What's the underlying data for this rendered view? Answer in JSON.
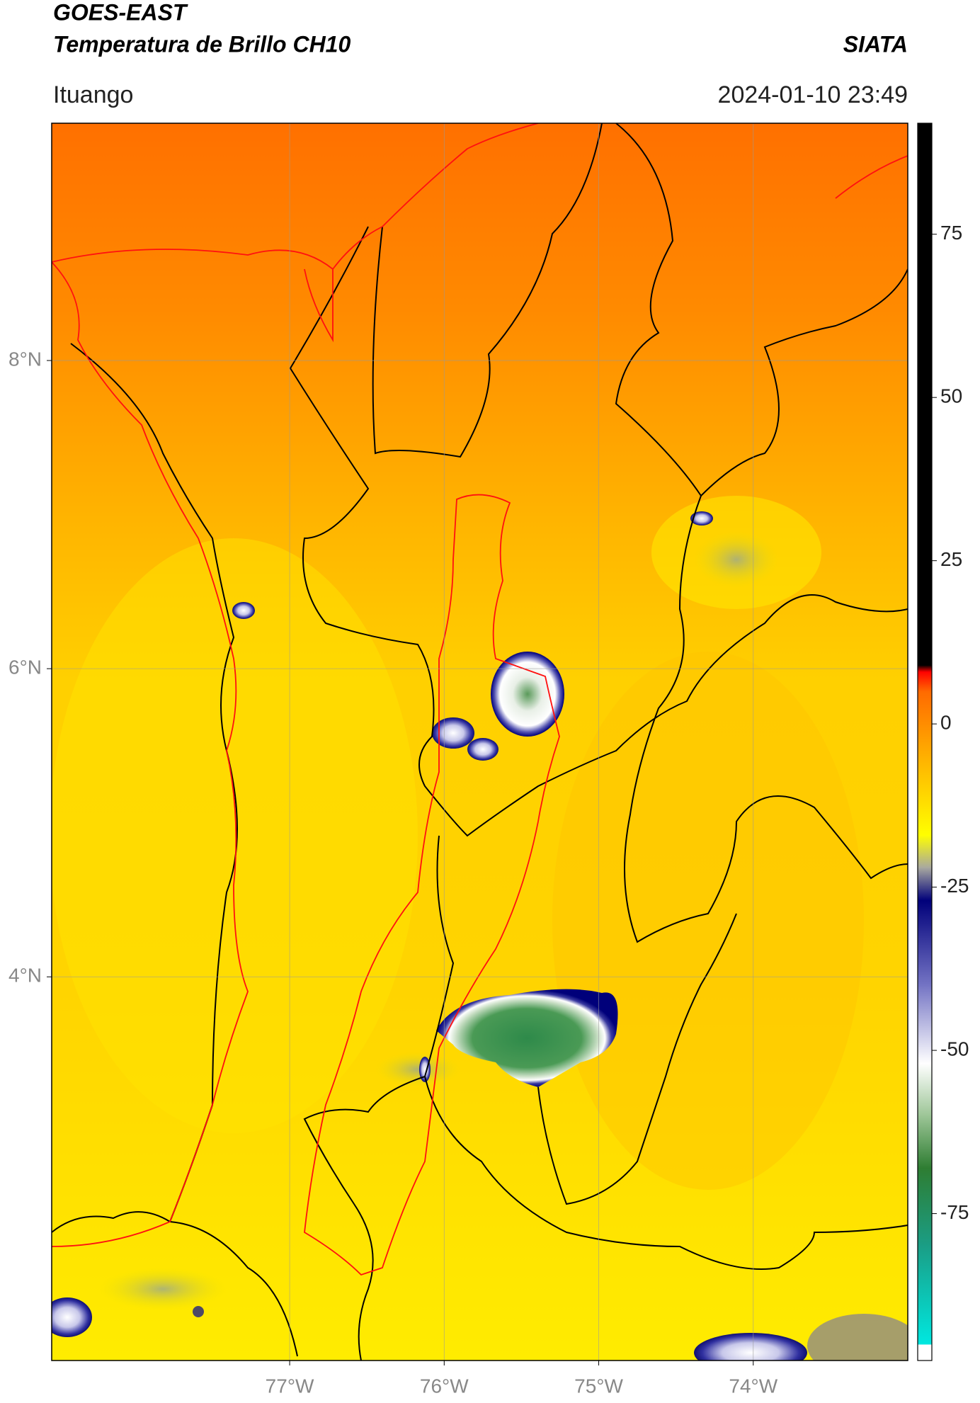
{
  "chart_data": {
    "type": "map",
    "title": "GOES-EAST",
    "subtitle": "Temperatura de Brillo CH10",
    "source": "SIATA",
    "location": "Ituango",
    "timestamp": "2024-01-10 23:49",
    "xlim": [
      -78.54,
      -73.0
    ],
    "ylim": [
      1.51,
      9.54
    ],
    "xticks": [
      {
        "value": -77,
        "label": "77°W"
      },
      {
        "value": -76,
        "label": "76°W"
      },
      {
        "value": -75,
        "label": "75°W"
      },
      {
        "value": -74,
        "label": "74°W"
      }
    ],
    "yticks": [
      {
        "value": 4,
        "label": "4°N"
      },
      {
        "value": 6,
        "label": "6°N"
      },
      {
        "value": 8,
        "label": "8°N"
      }
    ],
    "grid": true,
    "colorbar": {
      "lim": [
        -97.5,
        92
      ],
      "ticks": [
        -75,
        -50,
        -25,
        0,
        25,
        50,
        75
      ],
      "stops": [
        {
          "value": -97.5,
          "color": "#ffffff"
        },
        {
          "value": -95,
          "color": "#ffffff"
        },
        {
          "value": -95,
          "color": "#00e8e0"
        },
        {
          "value": -80,
          "color": "#1a9e86"
        },
        {
          "value": -68,
          "color": "#2e7d32"
        },
        {
          "value": -60,
          "color": "#9cc596"
        },
        {
          "value": -52,
          "color": "#ffffff"
        },
        {
          "value": -40,
          "color": "#7474c4"
        },
        {
          "value": -27,
          "color": "#00007a"
        },
        {
          "value": -22,
          "color": "#a8a8a0"
        },
        {
          "value": -17,
          "color": "#ffff00"
        },
        {
          "value": -5,
          "color": "#ffb000"
        },
        {
          "value": 5,
          "color": "#ff6a00"
        },
        {
          "value": 8,
          "color": "#ff0000"
        },
        {
          "value": 9,
          "color": "#000000"
        },
        {
          "value": 92,
          "color": "#000000"
        }
      ]
    }
  }
}
